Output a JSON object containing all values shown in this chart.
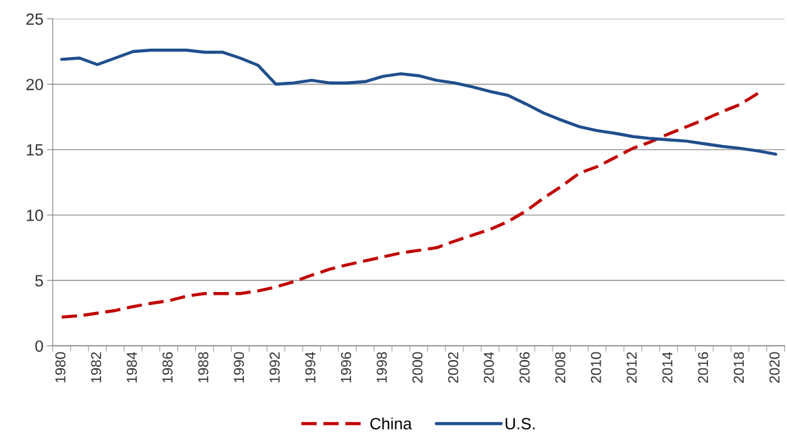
{
  "chart_data": {
    "type": "line",
    "categories": [
      "1980",
      null,
      "1982",
      null,
      "1984",
      null,
      "1986",
      null,
      "1988",
      null,
      "1990",
      null,
      "1992",
      null,
      "1994",
      null,
      "1996",
      null,
      "1998",
      null,
      "2000",
      null,
      "2002",
      null,
      "2004",
      null,
      "2006",
      null,
      "2008",
      null,
      "2010",
      null,
      "2012",
      null,
      "2014",
      null,
      "2016",
      null,
      "2018",
      null,
      "2020"
    ],
    "series": [
      {
        "name": "China",
        "color": "#c00000",
        "line_style": "dashed",
        "values": [
          2.2,
          2.3,
          2.5,
          2.7,
          3.0,
          3.25,
          3.45,
          3.8,
          4.0,
          4.0,
          4.0,
          4.2,
          4.5,
          4.9,
          5.4,
          5.85,
          6.2,
          6.5,
          6.8,
          7.1,
          7.3,
          7.5,
          8.0,
          8.45,
          8.9,
          9.5,
          10.3,
          11.3,
          12.2,
          13.2,
          13.7,
          14.4,
          15.1,
          15.6,
          16.2,
          16.75,
          17.3,
          17.9,
          18.45,
          19.3,
          null
        ]
      },
      {
        "name": "U.S.",
        "color": "#1f4e8c",
        "line_style": "solid",
        "values": [
          21.9,
          22.0,
          21.5,
          22.0,
          22.5,
          22.6,
          22.6,
          22.6,
          22.45,
          22.45,
          22.0,
          21.45,
          20.0,
          20.1,
          20.3,
          20.1,
          20.1,
          20.2,
          20.6,
          20.8,
          20.65,
          20.3,
          20.1,
          19.8,
          19.45,
          19.15,
          18.5,
          17.8,
          17.25,
          16.75,
          16.45,
          16.25,
          16.0,
          15.85,
          15.75,
          15.65,
          15.45,
          15.25,
          15.1,
          14.9,
          14.65
        ]
      }
    ],
    "ylim": [
      0,
      25
    ],
    "yticks": [
      0,
      5,
      10,
      15,
      20,
      25
    ],
    "grid": "y",
    "legend": "bottom",
    "marker": "none"
  }
}
